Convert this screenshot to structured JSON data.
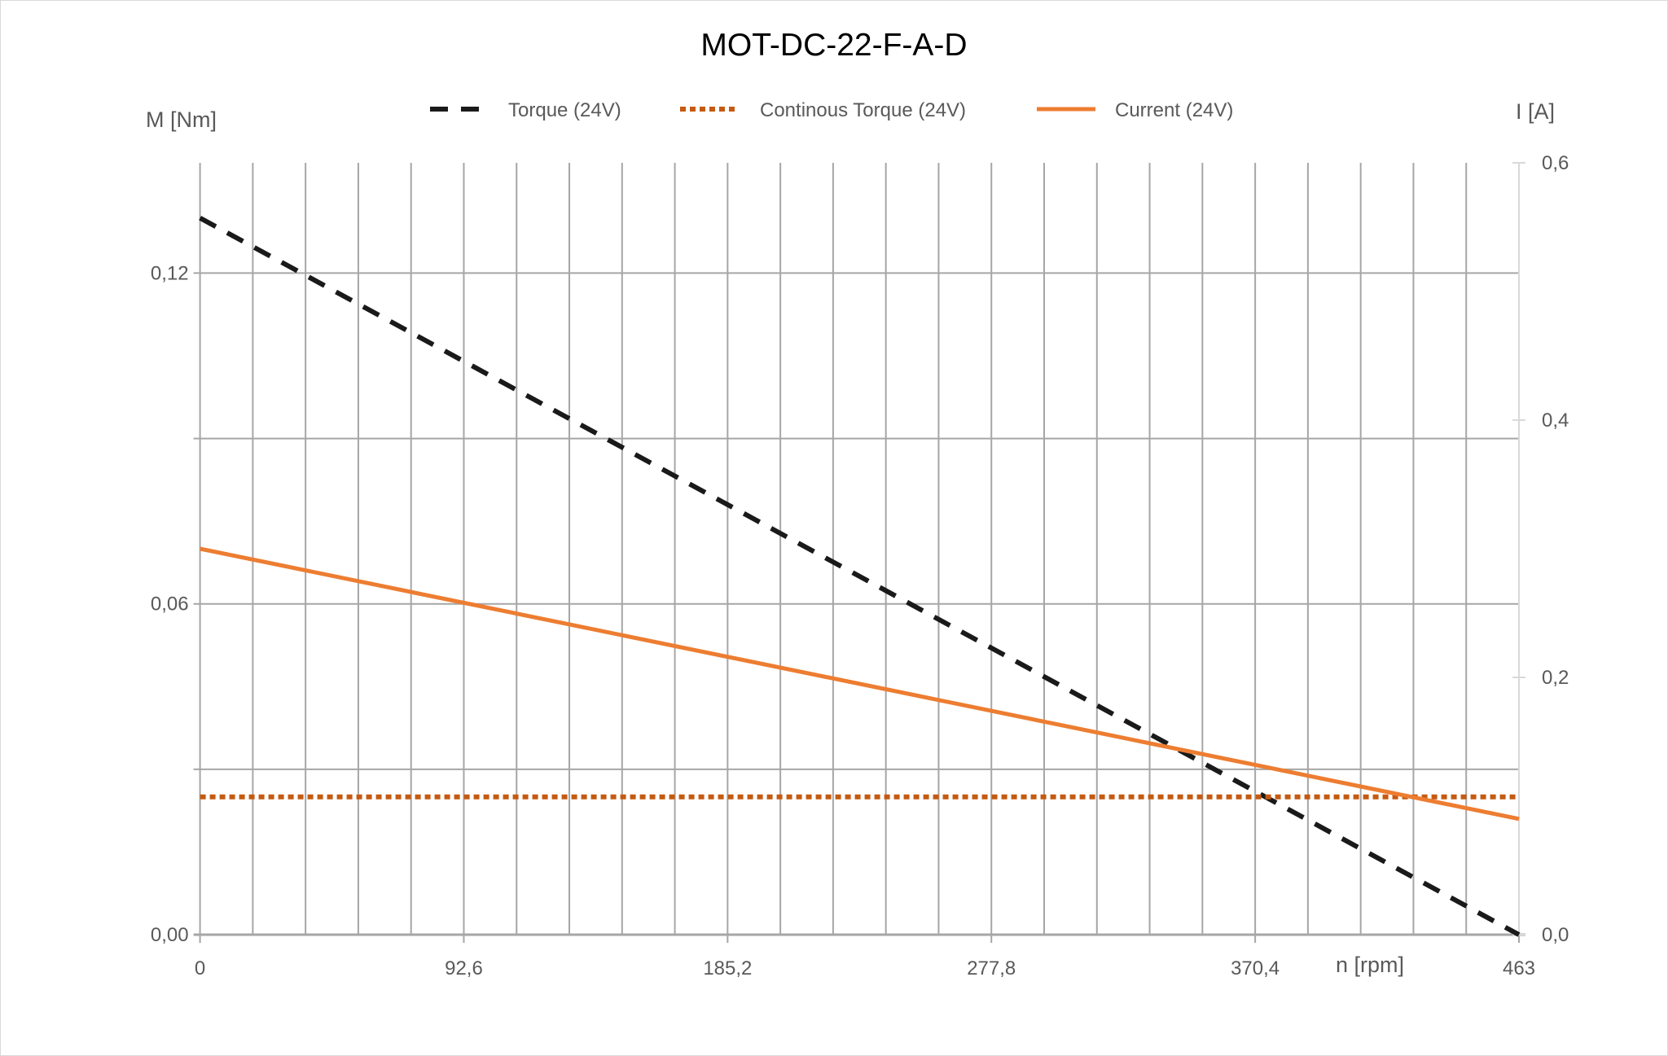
{
  "chart_data": {
    "type": "line",
    "title": "MOT-DC-22-F-A-D",
    "xlabel": "n [rpm]",
    "ylabel": "M [Nm]",
    "y2label": "I [A]",
    "xlim": [
      0,
      463
    ],
    "ylim": [
      0,
      0.14
    ],
    "y2lim": [
      0,
      0.6
    ],
    "x_ticks": [
      "0",
      "92,6",
      "185,2",
      "277,8",
      "370,4",
      "463"
    ],
    "y_ticks": [
      "0,00",
      "0,06",
      "0,12"
    ],
    "y2_ticks": [
      "0,0",
      "0,2",
      "0,4",
      "0,6"
    ],
    "grid": true,
    "legend_position": "top",
    "series": [
      {
        "name": "Torque (24V)",
        "axis": "left",
        "style": "dashed",
        "color": "#1a1a1a",
        "x": [
          0,
          463
        ],
        "y": [
          0.13,
          0
        ]
      },
      {
        "name": "Continous Torque (24V)",
        "axis": "left",
        "style": "dotted",
        "color": "#c55a11",
        "x": [
          0,
          463
        ],
        "y": [
          0.025,
          0.025
        ]
      },
      {
        "name": "Current (24V)",
        "axis": "right",
        "style": "solid",
        "color": "#ed7d31",
        "x": [
          0,
          463
        ],
        "y": [
          0.3,
          0.09
        ]
      }
    ]
  }
}
